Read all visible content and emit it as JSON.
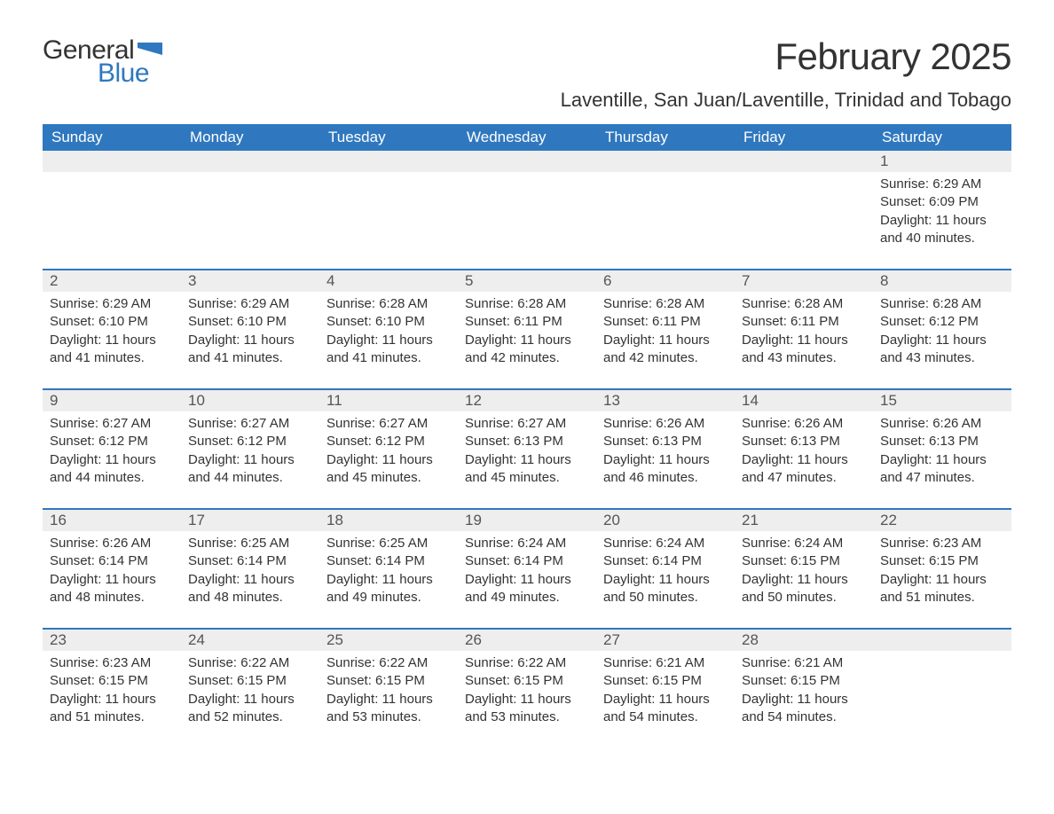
{
  "logo": {
    "text1": "General",
    "text2": "Blue",
    "flag_color": "#2f78bf"
  },
  "title": "February 2025",
  "location": "Laventille, San Juan/Laventille, Trinidad and Tobago",
  "colors": {
    "header_bg": "#2f78bf",
    "header_fg": "#ffffff",
    "daynum_bg": "#eeeeee",
    "divider": "#2f78bf",
    "text": "#333333",
    "logo_blue": "#2f78bf"
  },
  "day_headers": [
    "Sunday",
    "Monday",
    "Tuesday",
    "Wednesday",
    "Thursday",
    "Friday",
    "Saturday"
  ],
  "weeks": [
    [
      null,
      null,
      null,
      null,
      null,
      null,
      {
        "n": "1",
        "sunrise": "6:29 AM",
        "sunset": "6:09 PM",
        "daylight": "11 hours and 40 minutes."
      }
    ],
    [
      {
        "n": "2",
        "sunrise": "6:29 AM",
        "sunset": "6:10 PM",
        "daylight": "11 hours and 41 minutes."
      },
      {
        "n": "3",
        "sunrise": "6:29 AM",
        "sunset": "6:10 PM",
        "daylight": "11 hours and 41 minutes."
      },
      {
        "n": "4",
        "sunrise": "6:28 AM",
        "sunset": "6:10 PM",
        "daylight": "11 hours and 41 minutes."
      },
      {
        "n": "5",
        "sunrise": "6:28 AM",
        "sunset": "6:11 PM",
        "daylight": "11 hours and 42 minutes."
      },
      {
        "n": "6",
        "sunrise": "6:28 AM",
        "sunset": "6:11 PM",
        "daylight": "11 hours and 42 minutes."
      },
      {
        "n": "7",
        "sunrise": "6:28 AM",
        "sunset": "6:11 PM",
        "daylight": "11 hours and 43 minutes."
      },
      {
        "n": "8",
        "sunrise": "6:28 AM",
        "sunset": "6:12 PM",
        "daylight": "11 hours and 43 minutes."
      }
    ],
    [
      {
        "n": "9",
        "sunrise": "6:27 AM",
        "sunset": "6:12 PM",
        "daylight": "11 hours and 44 minutes."
      },
      {
        "n": "10",
        "sunrise": "6:27 AM",
        "sunset": "6:12 PM",
        "daylight": "11 hours and 44 minutes."
      },
      {
        "n": "11",
        "sunrise": "6:27 AM",
        "sunset": "6:12 PM",
        "daylight": "11 hours and 45 minutes."
      },
      {
        "n": "12",
        "sunrise": "6:27 AM",
        "sunset": "6:13 PM",
        "daylight": "11 hours and 45 minutes."
      },
      {
        "n": "13",
        "sunrise": "6:26 AM",
        "sunset": "6:13 PM",
        "daylight": "11 hours and 46 minutes."
      },
      {
        "n": "14",
        "sunrise": "6:26 AM",
        "sunset": "6:13 PM",
        "daylight": "11 hours and 47 minutes."
      },
      {
        "n": "15",
        "sunrise": "6:26 AM",
        "sunset": "6:13 PM",
        "daylight": "11 hours and 47 minutes."
      }
    ],
    [
      {
        "n": "16",
        "sunrise": "6:26 AM",
        "sunset": "6:14 PM",
        "daylight": "11 hours and 48 minutes."
      },
      {
        "n": "17",
        "sunrise": "6:25 AM",
        "sunset": "6:14 PM",
        "daylight": "11 hours and 48 minutes."
      },
      {
        "n": "18",
        "sunrise": "6:25 AM",
        "sunset": "6:14 PM",
        "daylight": "11 hours and 49 minutes."
      },
      {
        "n": "19",
        "sunrise": "6:24 AM",
        "sunset": "6:14 PM",
        "daylight": "11 hours and 49 minutes."
      },
      {
        "n": "20",
        "sunrise": "6:24 AM",
        "sunset": "6:14 PM",
        "daylight": "11 hours and 50 minutes."
      },
      {
        "n": "21",
        "sunrise": "6:24 AM",
        "sunset": "6:15 PM",
        "daylight": "11 hours and 50 minutes."
      },
      {
        "n": "22",
        "sunrise": "6:23 AM",
        "sunset": "6:15 PM",
        "daylight": "11 hours and 51 minutes."
      }
    ],
    [
      {
        "n": "23",
        "sunrise": "6:23 AM",
        "sunset": "6:15 PM",
        "daylight": "11 hours and 51 minutes."
      },
      {
        "n": "24",
        "sunrise": "6:22 AM",
        "sunset": "6:15 PM",
        "daylight": "11 hours and 52 minutes."
      },
      {
        "n": "25",
        "sunrise": "6:22 AM",
        "sunset": "6:15 PM",
        "daylight": "11 hours and 53 minutes."
      },
      {
        "n": "26",
        "sunrise": "6:22 AM",
        "sunset": "6:15 PM",
        "daylight": "11 hours and 53 minutes."
      },
      {
        "n": "27",
        "sunrise": "6:21 AM",
        "sunset": "6:15 PM",
        "daylight": "11 hours and 54 minutes."
      },
      {
        "n": "28",
        "sunrise": "6:21 AM",
        "sunset": "6:15 PM",
        "daylight": "11 hours and 54 minutes."
      },
      null
    ]
  ],
  "labels": {
    "sunrise_prefix": "Sunrise: ",
    "sunset_prefix": "Sunset: ",
    "daylight_prefix": "Daylight: "
  }
}
